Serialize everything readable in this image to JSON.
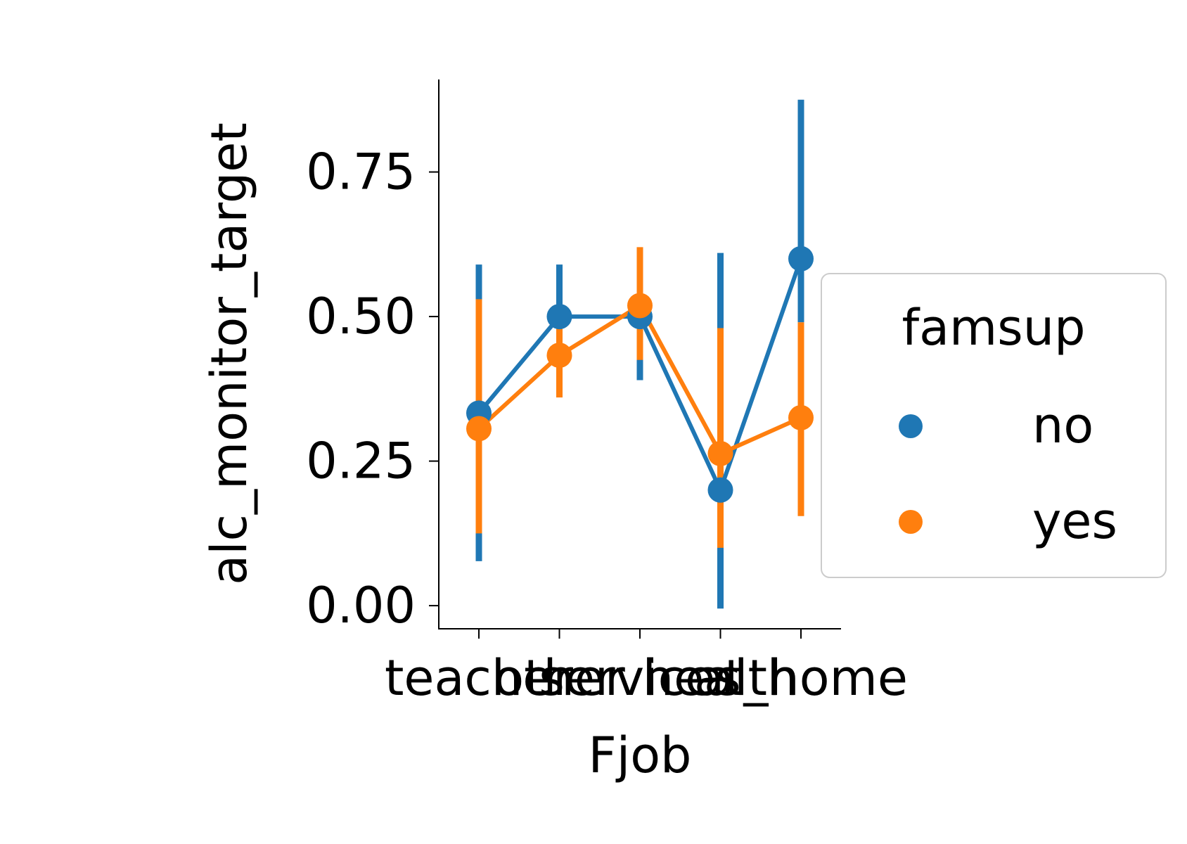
{
  "chart_data": {
    "type": "line",
    "xlabel": "Fjob",
    "ylabel": "alc_monitor_target",
    "categories": [
      "teacher",
      "other",
      "services",
      "health",
      "at_home"
    ],
    "ylim": [
      -0.04,
      0.91
    ],
    "yticks": [
      0.0,
      0.25,
      0.5,
      0.75
    ],
    "ytick_labels": [
      "0.00",
      "0.25",
      "0.50",
      "0.75"
    ],
    "grid": false,
    "legend": {
      "title": "famsup",
      "placement": "center-right (outside axes)",
      "entries": [
        "no",
        "yes"
      ]
    },
    "series": [
      {
        "name": "no",
        "color": "#1f77b4",
        "values": [
          0.333,
          0.5,
          0.5,
          0.2,
          0.6
        ],
        "ci_low": [
          0.077,
          0.41,
          0.39,
          -0.005,
          0.49
        ],
        "ci_high": [
          0.59,
          0.59,
          0.61,
          0.61,
          0.875
        ]
      },
      {
        "name": "yes",
        "color": "#ff7f0e",
        "values": [
          0.306,
          0.433,
          0.519,
          0.263,
          0.325
        ],
        "ci_low": [
          0.125,
          0.36,
          0.425,
          0.1,
          0.155
        ],
        "ci_high": [
          0.53,
          0.5,
          0.62,
          0.48,
          0.49
        ]
      }
    ]
  }
}
